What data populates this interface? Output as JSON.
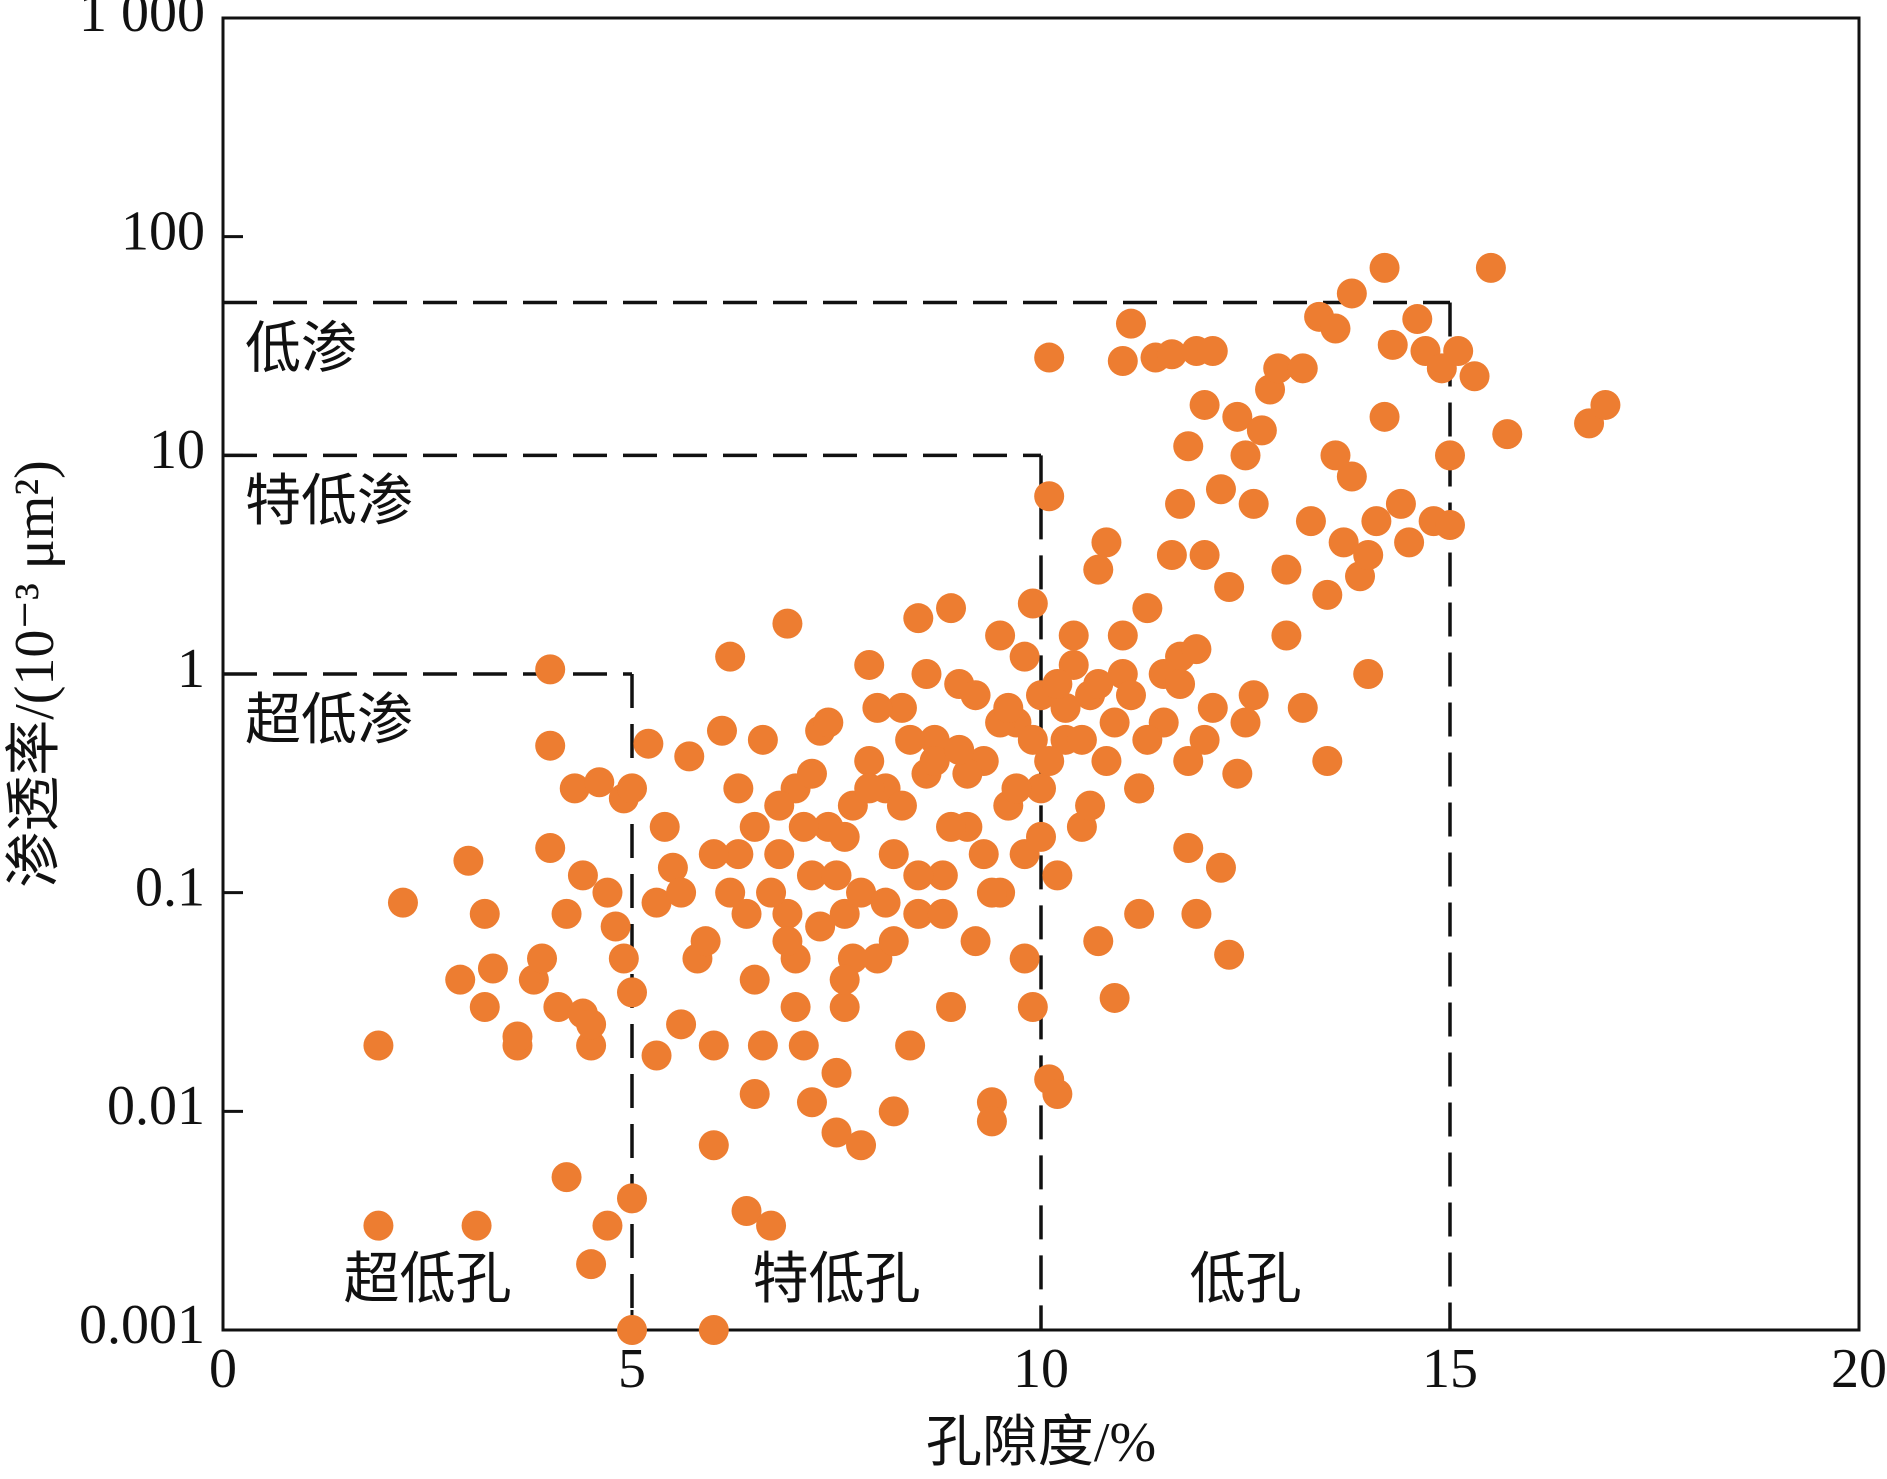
{
  "chart_data": {
    "type": "scatter",
    "xlabel": "孔隙度/%",
    "ylabel": "渗透率/(10⁻³ μm²)",
    "xlim": [
      0,
      20
    ],
    "xticks": [
      0,
      5,
      10,
      15,
      20
    ],
    "ylim": [
      0.001,
      1000
    ],
    "ylog": true,
    "yticks": [
      0.001,
      0.01,
      0.1,
      1,
      10,
      100,
      {
        "value": 1000,
        "label": "1 000"
      }
    ],
    "color": "#ed7d31",
    "boundaries": [
      {
        "x": 5,
        "y": 1,
        "perm_label": "超低渗",
        "poro_label": "超低孔"
      },
      {
        "x": 10,
        "y": 10,
        "perm_label": "特低渗",
        "poro_label": "特低孔"
      },
      {
        "x": 15,
        "y": 50,
        "perm_label": "低渗",
        "poro_label": "低孔"
      }
    ],
    "x": [
      1.9,
      1.9,
      2.2,
      3.0,
      3.1,
      3.2,
      2.9,
      3.2,
      3.3,
      3.6,
      3.6,
      3.8,
      3.9,
      4.0,
      4.0,
      4.0,
      4.1,
      4.2,
      4.2,
      4.3,
      4.4,
      4.4,
      4.5,
      4.5,
      4.5,
      4.6,
      4.7,
      4.7,
      4.8,
      4.9,
      4.9,
      5.0,
      5.0,
      5.0,
      5.0,
      5.2,
      5.3,
      5.3,
      5.4,
      5.5,
      5.6,
      5.7,
      5.8,
      5.9,
      6.0,
      6.0,
      6.0,
      6.1,
      6.2,
      6.2,
      6.3,
      6.4,
      6.5,
      6.5,
      6.5,
      6.6,
      6.6,
      6.7,
      6.8,
      6.9,
      6.9,
      7.0,
      7.0,
      7.1,
      7.2,
      7.2,
      7.3,
      7.4,
      7.4,
      7.5,
      7.5,
      7.6,
      7.6,
      7.7,
      7.8,
      7.8,
      7.9,
      7.9,
      8.0,
      8.1,
      8.2,
      8.2,
      8.3,
      8.4,
      8.5,
      8.5,
      8.6,
      8.7,
      8.8,
      8.9,
      8.9,
      9.0,
      9.1,
      9.2,
      9.3,
      9.4,
      9.4,
      9.5,
      9.5,
      9.6,
      9.7,
      9.8,
      9.8,
      9.9,
      9.9,
      10.0,
      10.0,
      10.1,
      10.1,
      10.1,
      10.2,
      10.2,
      10.3,
      10.4,
      10.5,
      10.6,
      10.7,
      10.7,
      10.8,
      10.8,
      10.9,
      11.0,
      11.0,
      11.1,
      11.2,
      11.2,
      11.3,
      11.4,
      11.5,
      11.6,
      11.6,
      11.7,
      11.8,
      11.9,
      11.9,
      12.0,
      12.0,
      12.0,
      12.1,
      11.8,
      11.7,
      12.2,
      12.2,
      12.3,
      12.3,
      12.4,
      12.5,
      12.6,
      12.6,
      12.7,
      12.8,
      12.9,
      13.0,
      13.0,
      13.2,
      13.2,
      13.3,
      13.4,
      13.5,
      13.5,
      13.6,
      13.6,
      13.7,
      13.8,
      13.8,
      13.9,
      14.0,
      14.0,
      14.1,
      14.2,
      14.2,
      14.3,
      14.4,
      14.5,
      14.6,
      14.7,
      14.8,
      14.9,
      15.0,
      15.0,
      15.1,
      15.3,
      15.5,
      15.7,
      16.7,
      16.9,
      6.3,
      6.7,
      7.1,
      7.5,
      7.9,
      8.3,
      8.7,
      9.1,
      9.5,
      9.9,
      10.3,
      10.7,
      11.1,
      11.5,
      11.9,
      6.9,
      7.3,
      7.7,
      8.1,
      8.5,
      8.9,
      9.3,
      9.7,
      10.1,
      10.5,
      10.9,
      11.3,
      11.7,
      12.1,
      12.5,
      7.0,
      7.6,
      8.2,
      8.8,
      9.4,
      10.0,
      10.6,
      11.2,
      11.8,
      12.4,
      8.0,
      8.6,
      9.2,
      9.8,
      10.4,
      11.0,
      5.6,
      6.0,
      6.4,
      6.8,
      7.2,
      7.6,
      8.4,
      9.0,
      9.6,
      10.2
    ],
    "values": [
      0.02,
      0.003,
      0.09,
      0.14,
      0.003,
      0.08,
      0.04,
      0.03,
      0.045,
      0.02,
      0.022,
      0.04,
      0.05,
      0.16,
      0.47,
      1.05,
      0.03,
      0.005,
      0.08,
      0.3,
      0.028,
      0.12,
      0.02,
      0.002,
      0.025,
      0.32,
      0.1,
      0.003,
      0.07,
      0.05,
      0.27,
      0.004,
      0.035,
      0.3,
      0.001,
      0.48,
      0.09,
      0.018,
      0.2,
      0.13,
      0.025,
      0.42,
      0.05,
      0.06,
      0.02,
      0.007,
      0.001,
      0.55,
      1.2,
      0.1,
      0.3,
      0.0035,
      0.2,
      0.04,
      0.012,
      0.02,
      0.5,
      0.003,
      0.15,
      0.08,
      1.7,
      0.3,
      0.05,
      0.02,
      0.12,
      0.011,
      0.55,
      0.6,
      0.2,
      0.015,
      0.008,
      0.08,
      0.03,
      0.25,
      0.007,
      0.1,
      1.1,
      0.4,
      0.05,
      0.3,
      0.15,
      0.01,
      0.7,
      0.02,
      1.8,
      0.08,
      0.35,
      0.5,
      0.12,
      2.0,
      0.03,
      0.9,
      0.2,
      0.06,
      0.4,
      0.011,
      0.009,
      1.5,
      0.1,
      0.25,
      0.6,
      0.05,
      0.15,
      2.1,
      0.03,
      0.8,
      0.3,
      0.014,
      6.5,
      28,
      0.012,
      0.12,
      0.5,
      1.5,
      0.2,
      0.8,
      3.0,
      0.06,
      0.4,
      4.0,
      0.033,
      1.0,
      27,
      40,
      0.3,
      0.08,
      2.0,
      28,
      0.6,
      3.5,
      29,
      1.2,
      0.16,
      30,
      0.08,
      17,
      0.5,
      3.5,
      30,
      11,
      6,
      0.13,
      7,
      0.052,
      2.5,
      15,
      10,
      0.8,
      6,
      13,
      20,
      25,
      1.5,
      3,
      0.7,
      25,
      5,
      43,
      0.4,
      2.3,
      38,
      10,
      4,
      55,
      8,
      2.8,
      1.0,
      3.5,
      5,
      72,
      15,
      32,
      6,
      4,
      42,
      30,
      5,
      25,
      10,
      4.8,
      30,
      23,
      72,
      12.5,
      14,
      17,
      0.15,
      0.1,
      0.2,
      0.12,
      0.3,
      0.25,
      0.4,
      0.35,
      0.6,
      0.5,
      0.7,
      0.9,
      0.8,
      1.0,
      1.3,
      0.06,
      0.07,
      0.05,
      0.09,
      0.12,
      0.2,
      0.15,
      0.3,
      0.4,
      0.5,
      0.6,
      0.5,
      0.9,
      0.7,
      0.6,
      0.03,
      0.04,
      0.06,
      0.08,
      0.1,
      0.18,
      0.25,
      0.3,
      0.4,
      0.35,
      0.7,
      1.0,
      0.8,
      1.2,
      1.1,
      1.5,
      0.1,
      0.15,
      0.08,
      0.25,
      0.35,
      0.18,
      0.5,
      0.45,
      0.7,
      0.9
    ]
  }
}
